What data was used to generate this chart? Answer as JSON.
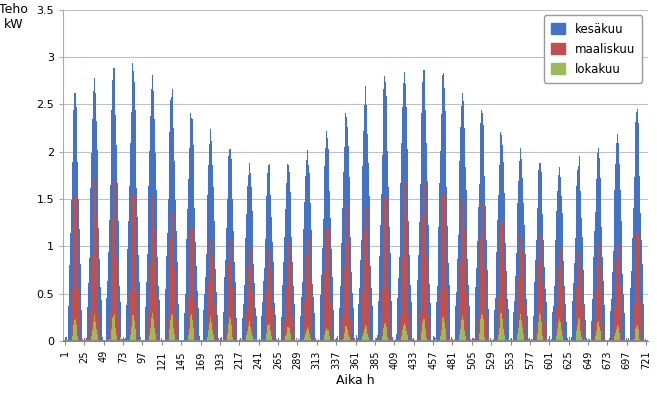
{
  "title": "",
  "xlabel": "Aika h",
  "ylabel": "Teho\nkW",
  "ylim": [
    0,
    3.5
  ],
  "yticks": [
    0,
    0.5,
    1.0,
    1.5,
    2.0,
    2.5,
    3.0,
    3.5
  ],
  "xtick_positions": [
    1,
    25,
    49,
    73,
    97,
    121,
    145,
    169,
    193,
    217,
    241,
    265,
    289,
    313,
    337,
    361,
    385,
    409,
    433,
    457,
    481,
    505,
    529,
    553,
    577,
    601,
    625,
    649,
    673,
    697,
    721
  ],
  "xtick_labels": [
    "1",
    "25",
    "49",
    "73",
    "97",
    "121",
    "145",
    "169",
    "193",
    "217",
    "241",
    "265",
    "289",
    "313",
    "337",
    "361",
    "385",
    "409",
    "433",
    "457",
    "481",
    "505",
    "529",
    "553",
    "577",
    "601",
    "625",
    "649",
    "673",
    "697",
    "721"
  ],
  "legend_labels": [
    "kesäkuu",
    "maaliskuu",
    "lokakuu"
  ],
  "colors": {
    "kesakuu": "#4472C4",
    "maaliskuu": "#C0504D",
    "lokakuu": "#9BBB59"
  },
  "n_hours": 720,
  "kesakuu_daylight_start": 3,
  "kesakuu_daylight_end": 22,
  "maaliskuu_daylight_start": 7,
  "maaliskuu_daylight_end": 19,
  "lokakuu_daylight_start": 8,
  "lokakuu_daylight_end": 17,
  "kesakuu_peak": 2.9,
  "maaliskuu_peak": 1.7,
  "lokakuu_peak": 0.3,
  "background_color": "#ffffff",
  "grid_color": "#c0c0c0",
  "figsize": [
    6.57,
    3.93
  ],
  "dpi": 100
}
